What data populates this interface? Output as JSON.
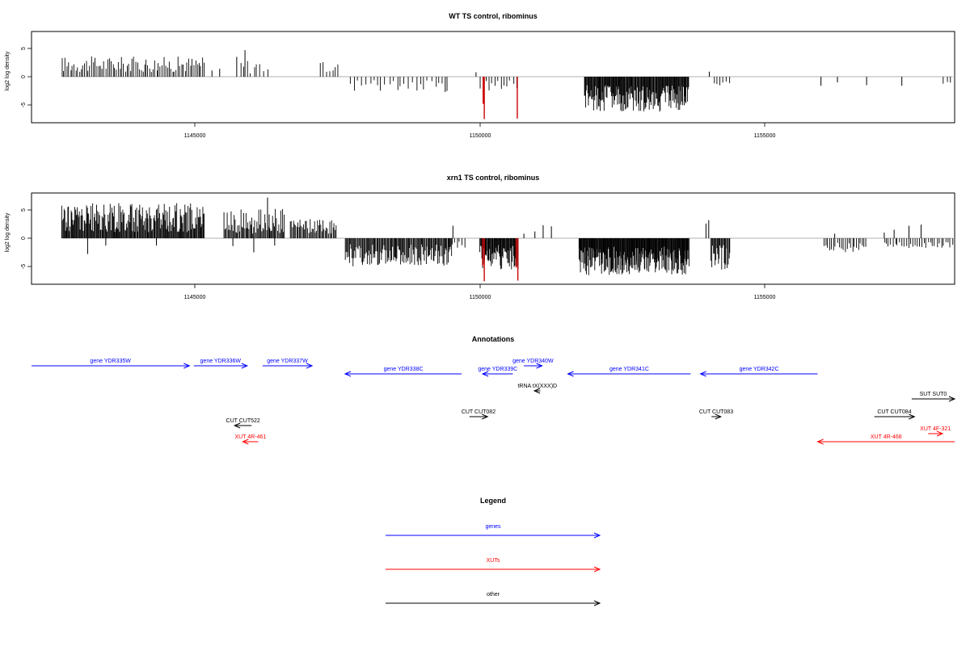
{
  "panels": [
    {
      "title": "WT TS control, ribominus",
      "ylabel": "log2 log density",
      "yticks": [
        "5",
        "0",
        "-5"
      ],
      "xticks": [
        "1145000",
        "1150000",
        "1155000"
      ],
      "ylim": [
        -8,
        8
      ],
      "xlim": [
        1141700,
        1158480
      ],
      "bar_color": "#000000",
      "highlight_color": "#cc0000"
    },
    {
      "title": "xrn1 TS control, ribominus",
      "ylabel": "log2 log density",
      "yticks": [
        "5",
        "0",
        "-5"
      ],
      "xticks": [
        "1145000",
        "1150000",
        "1155000"
      ],
      "ylim": [
        -8,
        8
      ],
      "xlim": [
        1141700,
        1158480
      ],
      "bar_color": "#000000",
      "highlight_color": "#cc0000"
    }
  ],
  "chart_data": [
    {
      "type": "bar",
      "title": "WT TS control, ribominus",
      "ylabel": "log2 log density",
      "xlim": [
        1141700,
        1158480
      ],
      "ylim": [
        -8,
        8
      ],
      "grid": false,
      "density_regions": [
        {
          "start": 1142250,
          "end": 1144850,
          "sign": 1,
          "min": 0.8,
          "max": 3.6,
          "step": 32
        },
        {
          "start": 1145500,
          "end": 1146000,
          "sign": 1,
          "min": 0.6,
          "max": 3.2,
          "step": 60
        },
        {
          "start": 1146950,
          "end": 1147300,
          "sign": 1,
          "min": 0.6,
          "max": 2.6,
          "step": 55
        },
        {
          "start": 1147500,
          "end": 1149300,
          "sign": -1,
          "min": 0.6,
          "max": 2.8,
          "step": 70
        },
        {
          "start": 1149850,
          "end": 1150550,
          "sign": -1,
          "min": 0.6,
          "max": 2.6,
          "step": 55
        },
        {
          "start": 1151750,
          "end": 1153650,
          "sign": -1,
          "min": 1.5,
          "max": 6.2,
          "step": 12
        },
        {
          "start": 1154100,
          "end": 1154400,
          "sign": -1,
          "min": 0.8,
          "max": 1.8,
          "step": 60
        },
        {
          "start": 1158250,
          "end": 1158450,
          "sign": -1,
          "min": 0.8,
          "max": 1.6,
          "step": 80
        }
      ],
      "bars": [
        {
          "x": 1145430,
          "y": 3.5
        },
        {
          "x": 1145580,
          "y": 4.7
        },
        {
          "x": 1145120,
          "y": 1.4
        },
        {
          "x": 1144980,
          "y": 1.1
        },
        {
          "x": 1149780,
          "y": 0.8
        },
        {
          "x": 1154020,
          "y": 0.9
        },
        {
          "x": 1156050,
          "y": -1.6
        },
        {
          "x": 1156350,
          "y": -1.0
        },
        {
          "x": 1156880,
          "y": -1.5
        },
        {
          "x": 1157520,
          "y": -1.6
        },
        {
          "x": 1149220,
          "y": -2.7
        }
      ],
      "highlight_bars": [
        {
          "x": 1149930,
          "y": -7.5
        },
        {
          "x": 1149910,
          "y": -4.8
        },
        {
          "x": 1150530,
          "y": -7.4
        }
      ]
    },
    {
      "type": "bar",
      "title": "xrn1 TS control, ribominus",
      "ylabel": "log2 log density",
      "xlim": [
        1141700,
        1158480
      ],
      "ylim": [
        -8,
        8
      ],
      "grid": false,
      "density_regions": [
        {
          "start": 1142250,
          "end": 1144850,
          "sign": 1,
          "min": 1.0,
          "max": 6.2,
          "step": 14
        },
        {
          "start": 1145200,
          "end": 1146300,
          "sign": 1,
          "min": 0.8,
          "max": 5.2,
          "step": 18
        },
        {
          "start": 1146400,
          "end": 1147250,
          "sign": 1,
          "min": 0.8,
          "max": 3.4,
          "step": 20
        },
        {
          "start": 1147400,
          "end": 1149350,
          "sign": -1,
          "min": 1.0,
          "max": 5.0,
          "step": 16
        },
        {
          "start": 1149300,
          "end": 1149600,
          "sign": -1,
          "min": 0.6,
          "max": 1.8,
          "step": 45
        },
        {
          "start": 1149850,
          "end": 1150550,
          "sign": -1,
          "min": 1.2,
          "max": 5.5,
          "step": 12
        },
        {
          "start": 1151650,
          "end": 1153650,
          "sign": -1,
          "min": 1.5,
          "max": 6.6,
          "step": 10
        },
        {
          "start": 1154050,
          "end": 1154400,
          "sign": -1,
          "min": 1.2,
          "max": 5.6,
          "step": 15
        },
        {
          "start": 1156100,
          "end": 1156900,
          "sign": -1,
          "min": 0.8,
          "max": 2.6,
          "step": 35
        },
        {
          "start": 1157200,
          "end": 1158450,
          "sign": -1,
          "min": 0.6,
          "max": 1.8,
          "step": 40
        }
      ],
      "bars": [
        {
          "x": 1145990,
          "y": 7.2
        },
        {
          "x": 1146020,
          "y": 4.2
        },
        {
          "x": 1142720,
          "y": -2.8
        },
        {
          "x": 1143050,
          "y": -1.3
        },
        {
          "x": 1143970,
          "y": -1.3
        },
        {
          "x": 1145360,
          "y": -1.4
        },
        {
          "x": 1146120,
          "y": -1.3
        },
        {
          "x": 1145740,
          "y": -2.5
        },
        {
          "x": 1149360,
          "y": 2.2
        },
        {
          "x": 1151000,
          "y": 2.3
        },
        {
          "x": 1151150,
          "y": 2.1
        },
        {
          "x": 1150850,
          "y": 1.2
        },
        {
          "x": 1150650,
          "y": 0.8
        },
        {
          "x": 1154010,
          "y": 3.2
        },
        {
          "x": 1153960,
          "y": 2.6
        },
        {
          "x": 1157650,
          "y": 2.2
        },
        {
          "x": 1157870,
          "y": 2.4
        },
        {
          "x": 1157380,
          "y": 1.5
        },
        {
          "x": 1156300,
          "y": 0.8
        },
        {
          "x": 1157200,
          "y": 1.0
        }
      ],
      "highlight_bars": [
        {
          "x": 1149930,
          "y": -7.6
        },
        {
          "x": 1149900,
          "y": -4.9
        },
        {
          "x": 1150540,
          "y": -7.5
        },
        {
          "x": 1150510,
          "y": -5.2
        }
      ]
    }
  ],
  "annotations": {
    "title": "Annotations",
    "features": [
      {
        "label": "gene YDR335W",
        "start": 1141700,
        "end": 1144570,
        "dir": "fwd",
        "row": 1,
        "color": "#0000ff"
      },
      {
        "label": "gene YDR336W",
        "start": 1144650,
        "end": 1145620,
        "dir": "fwd",
        "row": 1,
        "color": "#0000ff"
      },
      {
        "label": "gene YDR337W",
        "start": 1145900,
        "end": 1146800,
        "dir": "fwd",
        "row": 1,
        "color": "#0000ff"
      },
      {
        "label": "gene YDR338C",
        "start": 1147400,
        "end": 1149520,
        "dir": "rev",
        "row": 2,
        "color": "#0000ff"
      },
      {
        "label": "gene YDR339C",
        "start": 1149900,
        "end": 1150450,
        "dir": "rev",
        "row": 2,
        "color": "#0000ff"
      },
      {
        "label": "gene YDR340W",
        "start": 1150650,
        "end": 1150980,
        "dir": "fwd",
        "row": 1,
        "color": "#0000ff"
      },
      {
        "label": "gene YDR341C",
        "start": 1151450,
        "end": 1153680,
        "dir": "rev",
        "row": 2,
        "color": "#0000ff"
      },
      {
        "label": "gene YDR342C",
        "start": 1153860,
        "end": 1155990,
        "dir": "rev",
        "row": 2,
        "color": "#0000ff"
      },
      {
        "label": "tRNA tX(XXX)D",
        "start": 1150840,
        "end": 1150950,
        "dir": "rev",
        "row": 3,
        "color": "#000000"
      },
      {
        "label": "SUT SUT0",
        "start": 1157700,
        "end": 1158480,
        "dir": "fwd",
        "row": 4,
        "color": "#000000"
      },
      {
        "label": "CUT CUT082",
        "start": 1149660,
        "end": 1149990,
        "dir": "fwd",
        "row": 5,
        "color": "#000000"
      },
      {
        "label": "CUT CUT083",
        "start": 1154060,
        "end": 1154230,
        "dir": "fwd",
        "row": 5,
        "color": "#000000"
      },
      {
        "label": "CUT CUT084",
        "start": 1157020,
        "end": 1157750,
        "dir": "fwd",
        "row": 5,
        "color": "#000000"
      },
      {
        "label": "CUT CUT522",
        "start": 1145390,
        "end": 1145700,
        "dir": "rev",
        "row": 6,
        "color": "#000000"
      },
      {
        "label": "XUT 4F-321",
        "start": 1158000,
        "end": 1158260,
        "dir": "fwd",
        "row": 7,
        "color": "#ff0000"
      },
      {
        "label": "XUT 4R-461",
        "start": 1145540,
        "end": 1145820,
        "dir": "rev",
        "row": 8,
        "color": "#ff0000"
      },
      {
        "label": "XUT 4R-468",
        "start": 1155990,
        "end": 1158480,
        "dir": "rev",
        "row": 8,
        "color": "#ff0000"
      }
    ]
  },
  "legend": {
    "title": "Legend",
    "entries": [
      {
        "label": "genes",
        "color": "#0000ff"
      },
      {
        "label": "XUTs",
        "color": "#ff0000"
      },
      {
        "label": "other",
        "color": "#000000"
      }
    ]
  }
}
